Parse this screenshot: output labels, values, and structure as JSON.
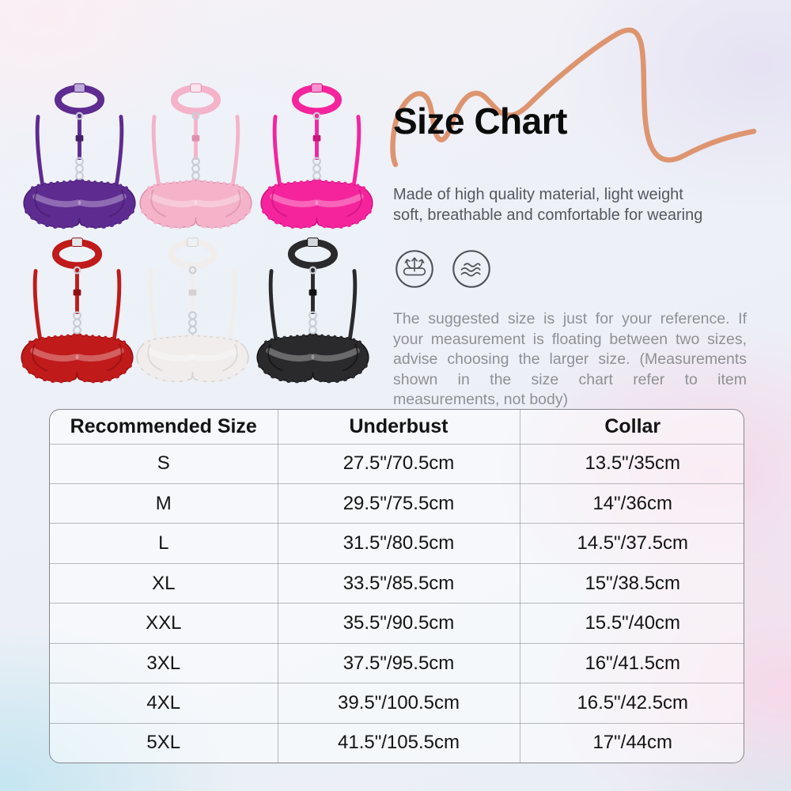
{
  "header": {
    "title": "Size Chart",
    "subtitle_line1": "Made of high quality material, light weight",
    "subtitle_line2": "soft, breathable and comfortable for wearing"
  },
  "note": {
    "text": "The suggested size is just for your reference. If your measurement is floating between two sizes, advise choosing the larger size. (Measurements shown in the size chart refer to item measurements, not body)"
  },
  "features": [
    {
      "icon": "four-way-stretch-icon"
    },
    {
      "icon": "breathable-fabric-icon"
    }
  ],
  "products": [
    {
      "name": "purple lace choker bra",
      "fill": "#5e2b91",
      "stroke": "#45206b",
      "clasp": "#bfa9dd"
    },
    {
      "name": "light pink lace choker bra",
      "fill": "#f4b3c9",
      "stroke": "#de8fae",
      "clasp": "#fce4ed"
    },
    {
      "name": "hot pink lace choker bra",
      "fill": "#f5249d",
      "stroke": "#c9137e",
      "clasp": "#fa93cd"
    },
    {
      "name": "red lace choker bra",
      "fill": "#c01a1b",
      "stroke": "#8f1111",
      "clasp": "#e4e7eb"
    },
    {
      "name": "white lace choker bra",
      "fill": "#f0edec",
      "stroke": "#d5d1cf",
      "clasp": "#eef1f4"
    },
    {
      "name": "black lace choker bra",
      "fill": "#2a2a2c",
      "stroke": "#121214",
      "clasp": "#d4d7dc"
    }
  ],
  "chart_data": {
    "type": "table",
    "title": "Size Chart",
    "columns": [
      "Recommended Size",
      "Underbust",
      "Collar"
    ],
    "rows": [
      [
        "S",
        "27.5\"/70.5cm",
        "13.5\"/35cm"
      ],
      [
        "M",
        "29.5\"/75.5cm",
        "14\"/36cm"
      ],
      [
        "L",
        "31.5\"/80.5cm",
        "14.5\"/37.5cm"
      ],
      [
        "XL",
        "33.5\"/85.5cm",
        "15\"/38.5cm"
      ],
      [
        "XXL",
        "35.5\"/90.5cm",
        "15.5\"/40cm"
      ],
      [
        "3XL",
        "37.5\"/95.5cm",
        "16\"/41.5cm"
      ],
      [
        "4XL",
        "39.5\"/100.5cm",
        "16.5\"/42.5cm"
      ],
      [
        "5XL",
        "41.5\"/105.5cm",
        "17\"/44cm"
      ]
    ]
  },
  "colors": {
    "swoosh": "#dd9570",
    "title": "#0b0b0b",
    "subtitle_text": "#54585f",
    "note_text": "#8f9094",
    "icon": "#4c5157",
    "ring_silver": "#c9ced6"
  }
}
